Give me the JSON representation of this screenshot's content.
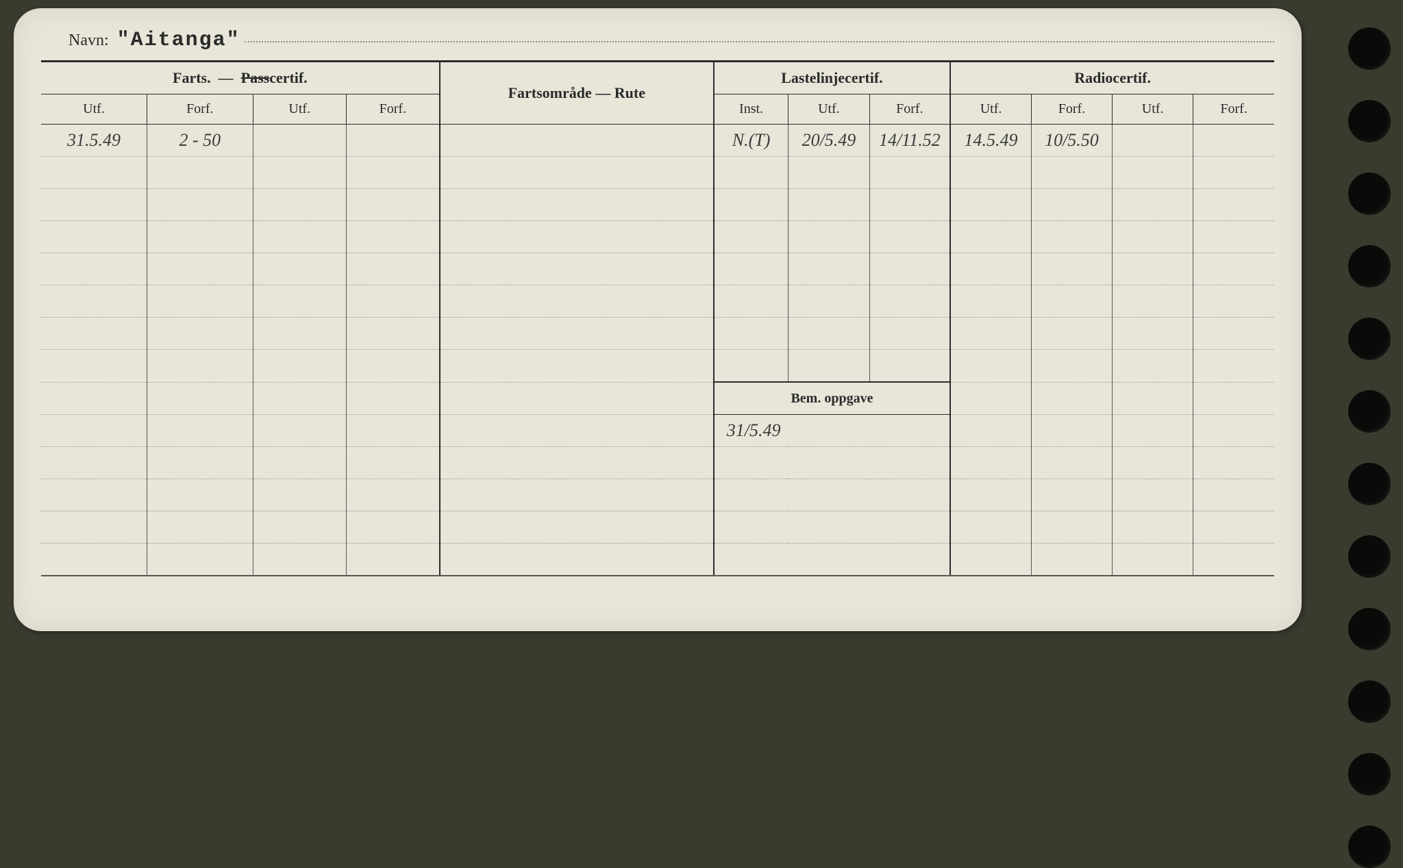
{
  "navn_label": "Navn:",
  "navn_value": "\"Aitanga\"",
  "groups": {
    "farts": "Farts. — Passcertif.",
    "fartsomrade": "Fartsområde — Rute",
    "lastelinje": "Lastelinjecertif.",
    "radio": "Radiocertif."
  },
  "sub": {
    "utf": "Utf.",
    "forf": "Forf.",
    "inst": "Inst."
  },
  "bem_label": "Bem. oppgave",
  "data_row": {
    "farts_utf1": "31.5.49",
    "farts_forf1": "2 - 50",
    "laste_inst": "N.(T)",
    "laste_utf": "20/5.49",
    "laste_forf": "14/11.52",
    "radio_utf1": "14.5.49",
    "radio_forf1": "10/5.50"
  },
  "bem_value": "31/5.49",
  "layout": {
    "col_widths_pct": [
      8.5,
      8.5,
      7.5,
      7.5,
      22,
      6,
      6.5,
      6.5,
      6.5,
      6.5,
      6.5,
      6.5
    ],
    "card_bg": "#e8e6d9",
    "page_bg": "#3a3a2f",
    "border_color": "#2a2a2a",
    "dotted_color": "#999",
    "handwriting_color": "#3a3a3a",
    "print_fontsize": 21,
    "handwriting_fontsize": 26,
    "body_rows_upper": 8,
    "body_rows_lower": 5,
    "holes": 12
  }
}
